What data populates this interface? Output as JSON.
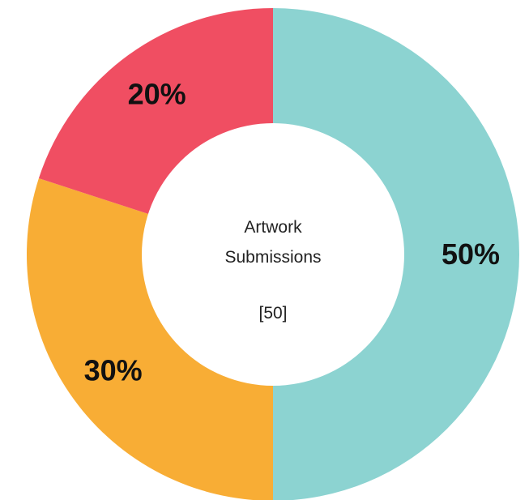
{
  "chart_data": {
    "type": "pie",
    "variant": "donut",
    "center_label": {
      "lines": [
        "Artwork",
        "Submissions"
      ],
      "total": "[50]"
    },
    "slices": [
      {
        "label": "50%",
        "value": 50,
        "color": "#8CD3D1"
      },
      {
        "label": "30%",
        "value": 30,
        "color": "#F8AD35"
      },
      {
        "label": "20%",
        "value": 20,
        "color": "#F04E62"
      }
    ],
    "start_angle_deg": 0,
    "direction": "clockwise",
    "legend": "none"
  }
}
